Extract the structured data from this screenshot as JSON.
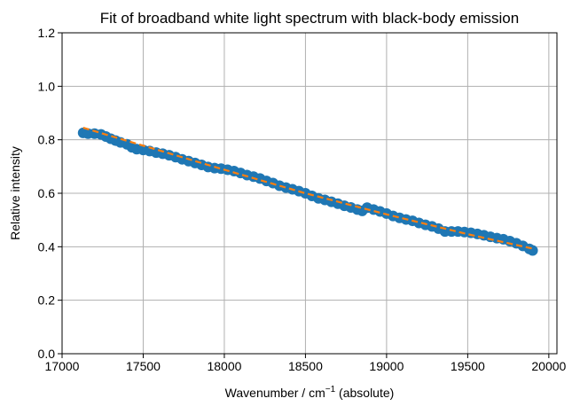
{
  "chart_data": {
    "type": "scatter",
    "title": "Fit of broadband white light spectrum with black-body emission",
    "xlabel_prefix": "Wavenumber / cm",
    "xlabel_sup": "−1",
    "xlabel_suffix": " (absolute)",
    "ylabel": "Relative intensity",
    "xlim": [
      17000,
      20050
    ],
    "ylim": [
      0.0,
      1.2
    ],
    "xticks": [
      17000,
      17500,
      18000,
      18500,
      19000,
      19500,
      20000
    ],
    "xtick_labels": [
      "17000",
      "17500",
      "18000",
      "18500",
      "19000",
      "19500",
      "20000"
    ],
    "yticks": [
      0.0,
      0.2,
      0.4,
      0.6,
      0.8,
      1.0,
      1.2
    ],
    "ytick_labels": [
      "0.0",
      "0.2",
      "0.4",
      "0.6",
      "0.8",
      "1.0",
      "1.2"
    ],
    "grid": true,
    "colors": {
      "data": "#1f77b4",
      "fit": "#ff7f0e",
      "grid": "#b0b0b0"
    },
    "series": [
      {
        "kind": "scatter",
        "x": [
          17130,
          17160,
          17200,
          17240,
          17270,
          17300,
          17330,
          17360,
          17400,
          17430,
          17460,
          17500,
          17540,
          17580,
          17620,
          17660,
          17700,
          17740,
          17780,
          17820,
          17860,
          17900,
          17940,
          17980,
          18020,
          18060,
          18100,
          18140,
          18180,
          18220,
          18260,
          18300,
          18340,
          18380,
          18420,
          18460,
          18500,
          18540,
          18580,
          18620,
          18660,
          18700,
          18740,
          18780,
          18820,
          18850,
          18880,
          18920,
          18960,
          19000,
          19040,
          19080,
          19120,
          19160,
          19200,
          19240,
          19280,
          19320,
          19360,
          19400,
          19440,
          19480,
          19520,
          19560,
          19600,
          19640,
          19680,
          19720,
          19760,
          19800,
          19840,
          19880,
          19900
        ],
        "y": [
          0.826,
          0.823,
          0.823,
          0.82,
          0.812,
          0.804,
          0.797,
          0.79,
          0.783,
          0.772,
          0.765,
          0.762,
          0.758,
          0.752,
          0.748,
          0.742,
          0.735,
          0.727,
          0.72,
          0.713,
          0.706,
          0.698,
          0.694,
          0.692,
          0.688,
          0.683,
          0.676,
          0.668,
          0.662,
          0.655,
          0.646,
          0.638,
          0.628,
          0.621,
          0.615,
          0.608,
          0.6,
          0.59,
          0.581,
          0.575,
          0.568,
          0.561,
          0.553,
          0.547,
          0.539,
          0.534,
          0.546,
          0.539,
          0.532,
          0.524,
          0.515,
          0.508,
          0.502,
          0.497,
          0.489,
          0.482,
          0.476,
          0.468,
          0.457,
          0.457,
          0.457,
          0.455,
          0.452,
          0.448,
          0.443,
          0.437,
          0.432,
          0.428,
          0.421,
          0.413,
          0.403,
          0.392,
          0.386
        ]
      },
      {
        "kind": "line",
        "style": "dashed",
        "x": [
          17130,
          17500,
          18000,
          18500,
          19000,
          19500,
          19900
        ],
        "y": [
          0.845,
          0.778,
          0.688,
          0.6,
          0.521,
          0.447,
          0.393
        ]
      }
    ]
  }
}
